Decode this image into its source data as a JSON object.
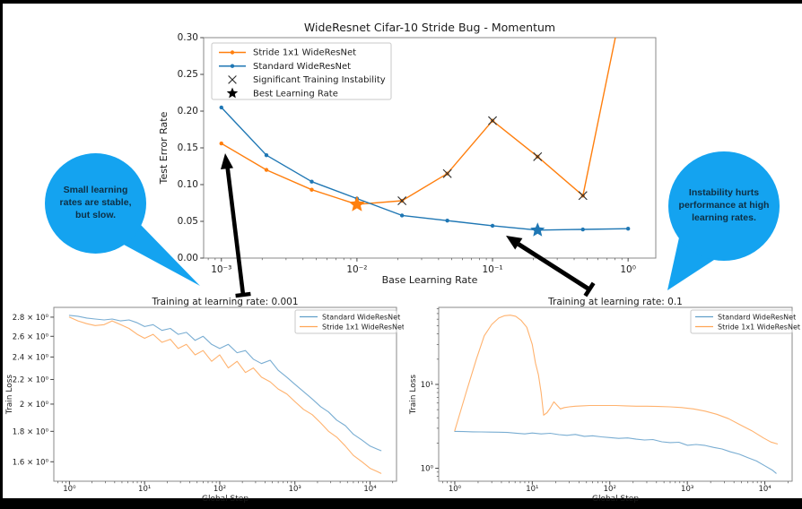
{
  "figure": {
    "background": "#ffffff",
    "frame_color": "#000000",
    "accent_blue": "#1f77b4",
    "accent_orange": "#ff7f0e",
    "bubble_color": "#14a3f0",
    "bubble_text_color": "#0e2f44"
  },
  "annotations": {
    "left_bubble": {
      "text": "Small learning rates are stable, but slow."
    },
    "right_bubble": {
      "text": "Instability hurts performance at high learning rates."
    }
  },
  "chart_data": [
    {
      "type": "line",
      "title": "WideResnet Cifar-10 Stride Bug - Momentum",
      "xlabel": "Base Learning Rate",
      "ylabel": "Test Error Rate",
      "xscale": "log",
      "yscale": "linear",
      "xlim": [
        0.00074,
        1.6
      ],
      "ylim": [
        0,
        0.3
      ],
      "grid": false,
      "xticks": [
        {
          "v": 0.001,
          "label": "10⁻³"
        },
        {
          "v": 0.01,
          "label": "10⁻²"
        },
        {
          "v": 0.1,
          "label": "10⁻¹"
        },
        {
          "v": 1,
          "label": "10⁰"
        }
      ],
      "yticks": [
        {
          "v": 0.0,
          "label": "0.00"
        },
        {
          "v": 0.05,
          "label": "0.05"
        },
        {
          "v": 0.1,
          "label": "0.10"
        },
        {
          "v": 0.15,
          "label": "0.15"
        },
        {
          "v": 0.2,
          "label": "0.20"
        },
        {
          "v": 0.25,
          "label": "0.25"
        },
        {
          "v": 0.3,
          "label": "0.30"
        }
      ],
      "series": [
        {
          "name": "Stride 1x1 WideResNet",
          "color": "#ff7f0e",
          "marker": "dot",
          "width": 1.4,
          "x": [
            0.001,
            0.00215,
            0.00464,
            0.01,
            0.0215,
            0.0464,
            0.1,
            0.215,
            0.464,
            1.0
          ],
          "y": [
            0.156,
            0.12,
            0.093,
            0.073,
            0.078,
            0.115,
            0.187,
            0.138,
            0.085,
            0.385
          ]
        },
        {
          "name": "Standard WideResNet",
          "color": "#1f77b4",
          "marker": "dot",
          "width": 1.4,
          "x": [
            0.001,
            0.00215,
            0.00464,
            0.01,
            0.0215,
            0.0464,
            0.1,
            0.215,
            0.464,
            1.0
          ],
          "y": [
            0.205,
            0.14,
            0.104,
            0.081,
            0.058,
            0.051,
            0.044,
            0.038,
            0.039,
            0.04
          ]
        }
      ],
      "overlays": [
        {
          "type": "x",
          "color": "#2f2f2f",
          "label": "Significant Training Instability",
          "points": [
            [
              0.0215,
              0.078
            ],
            [
              0.0464,
              0.115
            ],
            [
              0.1,
              0.187
            ],
            [
              0.215,
              0.138
            ],
            [
              0.464,
              0.085
            ]
          ]
        },
        {
          "type": "star",
          "color": "#ff7f0e",
          "label": "Best Learning Rate (Stride 1x1)",
          "x": 0.01,
          "y": 0.073,
          "size": 9.5
        },
        {
          "type": "star",
          "color": "#1f77b4",
          "label": "Best Learning Rate (Standard)",
          "x": 0.215,
          "y": 0.038,
          "size": 8.5
        }
      ],
      "legend": {
        "items": [
          {
            "swatch": "line-dot",
            "color": "#ff7f0e",
            "label": "Stride 1x1 WideResNet"
          },
          {
            "swatch": "line-dot",
            "color": "#1f77b4",
            "label": "Standard WideResNet"
          },
          {
            "swatch": "x",
            "color": "#2f2f2f",
            "label": "Significant Training Instability"
          },
          {
            "swatch": "star",
            "color": "#000000",
            "label": "Best Learning Rate"
          }
        ]
      }
    },
    {
      "type": "line",
      "title": "Training at learning rate: 0.001",
      "xlabel": "Global Step",
      "ylabel": "Train Loss",
      "xscale": "log",
      "yscale": "log",
      "xlim": [
        0.62,
        22500
      ],
      "ylim": [
        1.484,
        2.908
      ],
      "grid": false,
      "xticks": [
        {
          "v": 1,
          "label": "10⁰"
        },
        {
          "v": 10,
          "label": "10¹"
        },
        {
          "v": 100,
          "label": "10²"
        },
        {
          "v": 1000,
          "label": "10³"
        },
        {
          "v": 10000,
          "label": "10⁴"
        }
      ],
      "yticks": [
        {
          "v": 2.8,
          "label": "2.8 × 10⁰"
        },
        {
          "v": 2.6,
          "label": "2.6 × 10⁰"
        },
        {
          "v": 2.4,
          "label": "2.4 × 10⁰"
        },
        {
          "v": 2.2,
          "label": "2.2 × 10⁰"
        },
        {
          "v": 2.0,
          "label": "2 × 10⁰"
        },
        {
          "v": 1.8,
          "label": "1.8 × 10⁰"
        },
        {
          "v": 1.6,
          "label": "1.6 × 10⁰"
        }
      ],
      "series": [
        {
          "name": "Standard WideResNet",
          "color": "#1f77b4",
          "opacity": 0.6,
          "width": 1.1,
          "x": [
            1,
            1.3,
            1.7,
            2.2,
            2.9,
            3.7,
            4.8,
            6.2,
            8,
            10,
            13,
            17,
            22,
            28,
            36,
            47,
            60,
            78,
            100,
            130,
            170,
            220,
            280,
            360,
            470,
            600,
            780,
            1000,
            1300,
            1700,
            2200,
            2800,
            3600,
            4700,
            6000,
            7800,
            10000,
            12500,
            14000
          ],
          "y": [
            2.82,
            2.81,
            2.79,
            2.78,
            2.77,
            2.78,
            2.76,
            2.77,
            2.74,
            2.7,
            2.72,
            2.66,
            2.68,
            2.62,
            2.64,
            2.56,
            2.6,
            2.52,
            2.48,
            2.52,
            2.44,
            2.46,
            2.38,
            2.34,
            2.37,
            2.28,
            2.22,
            2.16,
            2.1,
            2.04,
            1.98,
            1.94,
            1.88,
            1.84,
            1.78,
            1.74,
            1.7,
            1.68,
            1.67
          ]
        },
        {
          "name": "Stride 1x1 WideResNet",
          "color": "#ff7f0e",
          "opacity": 0.6,
          "width": 1.1,
          "x": [
            1,
            1.3,
            1.7,
            2.2,
            2.9,
            3.7,
            4.8,
            6.2,
            8,
            10,
            13,
            17,
            22,
            28,
            36,
            47,
            60,
            78,
            100,
            130,
            170,
            220,
            280,
            360,
            470,
            600,
            780,
            1000,
            1300,
            1700,
            2200,
            2800,
            3600,
            4700,
            6000,
            7800,
            10000,
            12500,
            14000
          ],
          "y": [
            2.8,
            2.76,
            2.73,
            2.71,
            2.72,
            2.76,
            2.72,
            2.68,
            2.62,
            2.58,
            2.62,
            2.54,
            2.57,
            2.48,
            2.52,
            2.42,
            2.46,
            2.36,
            2.42,
            2.3,
            2.36,
            2.26,
            2.3,
            2.22,
            2.18,
            2.12,
            2.08,
            2.02,
            1.96,
            1.92,
            1.86,
            1.8,
            1.76,
            1.7,
            1.64,
            1.6,
            1.56,
            1.54,
            1.53
          ]
        }
      ],
      "legend": {
        "items": [
          {
            "swatch": "line",
            "color": "#1f77b4",
            "label": "Standard WideResNet"
          },
          {
            "swatch": "line",
            "color": "#ff7f0e",
            "label": "Stride 1x1 WideResNet"
          }
        ]
      }
    },
    {
      "type": "line",
      "title": "Training at learning rate: 0.1",
      "xlabel": "Global Step",
      "ylabel": "Train Loss",
      "xscale": "log",
      "yscale": "log",
      "xlim": [
        0.62,
        22500
      ],
      "ylim": [
        0.7,
        83
      ],
      "yminor": true,
      "grid": false,
      "xticks": [
        {
          "v": 1,
          "label": "10⁰"
        },
        {
          "v": 10,
          "label": "10¹"
        },
        {
          "v": 100,
          "label": "10²"
        },
        {
          "v": 1000,
          "label": "10³"
        },
        {
          "v": 10000,
          "label": "10⁴"
        }
      ],
      "yticks": [
        {
          "v": 10,
          "label": "10¹"
        },
        {
          "v": 1,
          "label": "10⁰"
        }
      ],
      "series": [
        {
          "name": "Standard WideResNet",
          "color": "#1f77b4",
          "opacity": 0.6,
          "width": 1.1,
          "x": [
            1,
            1.3,
            1.7,
            2.2,
            2.9,
            3.7,
            4.8,
            6.2,
            8,
            10,
            13,
            17,
            22,
            28,
            36,
            47,
            60,
            78,
            100,
            130,
            170,
            220,
            280,
            360,
            470,
            600,
            780,
            1000,
            1300,
            1700,
            2200,
            2800,
            3600,
            4700,
            6000,
            7800,
            10000,
            12500,
            14000
          ],
          "y": [
            2.75,
            2.74,
            2.72,
            2.71,
            2.7,
            2.69,
            2.67,
            2.62,
            2.57,
            2.63,
            2.57,
            2.61,
            2.52,
            2.47,
            2.53,
            2.4,
            2.44,
            2.37,
            2.32,
            2.27,
            2.3,
            2.22,
            2.17,
            2.2,
            2.07,
            2.02,
            2.04,
            1.88,
            1.92,
            1.87,
            1.77,
            1.7,
            1.57,
            1.47,
            1.34,
            1.22,
            1.07,
            0.95,
            0.87
          ]
        },
        {
          "name": "Stride 1x1 WideResNet",
          "color": "#ff7f0e",
          "opacity": 0.6,
          "width": 1.1,
          "x": [
            1,
            1.4,
            1.9,
            2.4,
            3,
            3.7,
            4.4,
            5.2,
            6.1,
            7.2,
            8.5,
            10,
            11,
            12,
            13,
            14,
            15.5,
            17,
            19,
            21,
            23,
            26,
            30,
            36,
            44,
            55,
            70,
            90,
            120,
            160,
            220,
            300,
            420,
            600,
            850,
            1200,
            1700,
            2400,
            3400,
            4800,
            6800,
            9600,
            12000,
            14500
          ],
          "y": [
            2.8,
            8,
            20,
            38,
            52,
            62,
            66,
            67,
            65,
            58,
            48,
            30,
            18,
            13,
            8,
            4.3,
            4.6,
            5.2,
            6.2,
            5.6,
            5.1,
            5.3,
            5.4,
            5.5,
            5.55,
            5.6,
            5.6,
            5.6,
            5.6,
            5.55,
            5.5,
            5.5,
            5.45,
            5.4,
            5.3,
            5.1,
            4.8,
            4.4,
            3.9,
            3.3,
            2.8,
            2.3,
            2.05,
            1.95
          ]
        }
      ],
      "legend": {
        "items": [
          {
            "swatch": "line",
            "color": "#1f77b4",
            "label": "Standard WideResNet"
          },
          {
            "swatch": "line",
            "color": "#ff7f0e",
            "label": "Stride 1x1 WideResNet"
          }
        ]
      }
    }
  ]
}
